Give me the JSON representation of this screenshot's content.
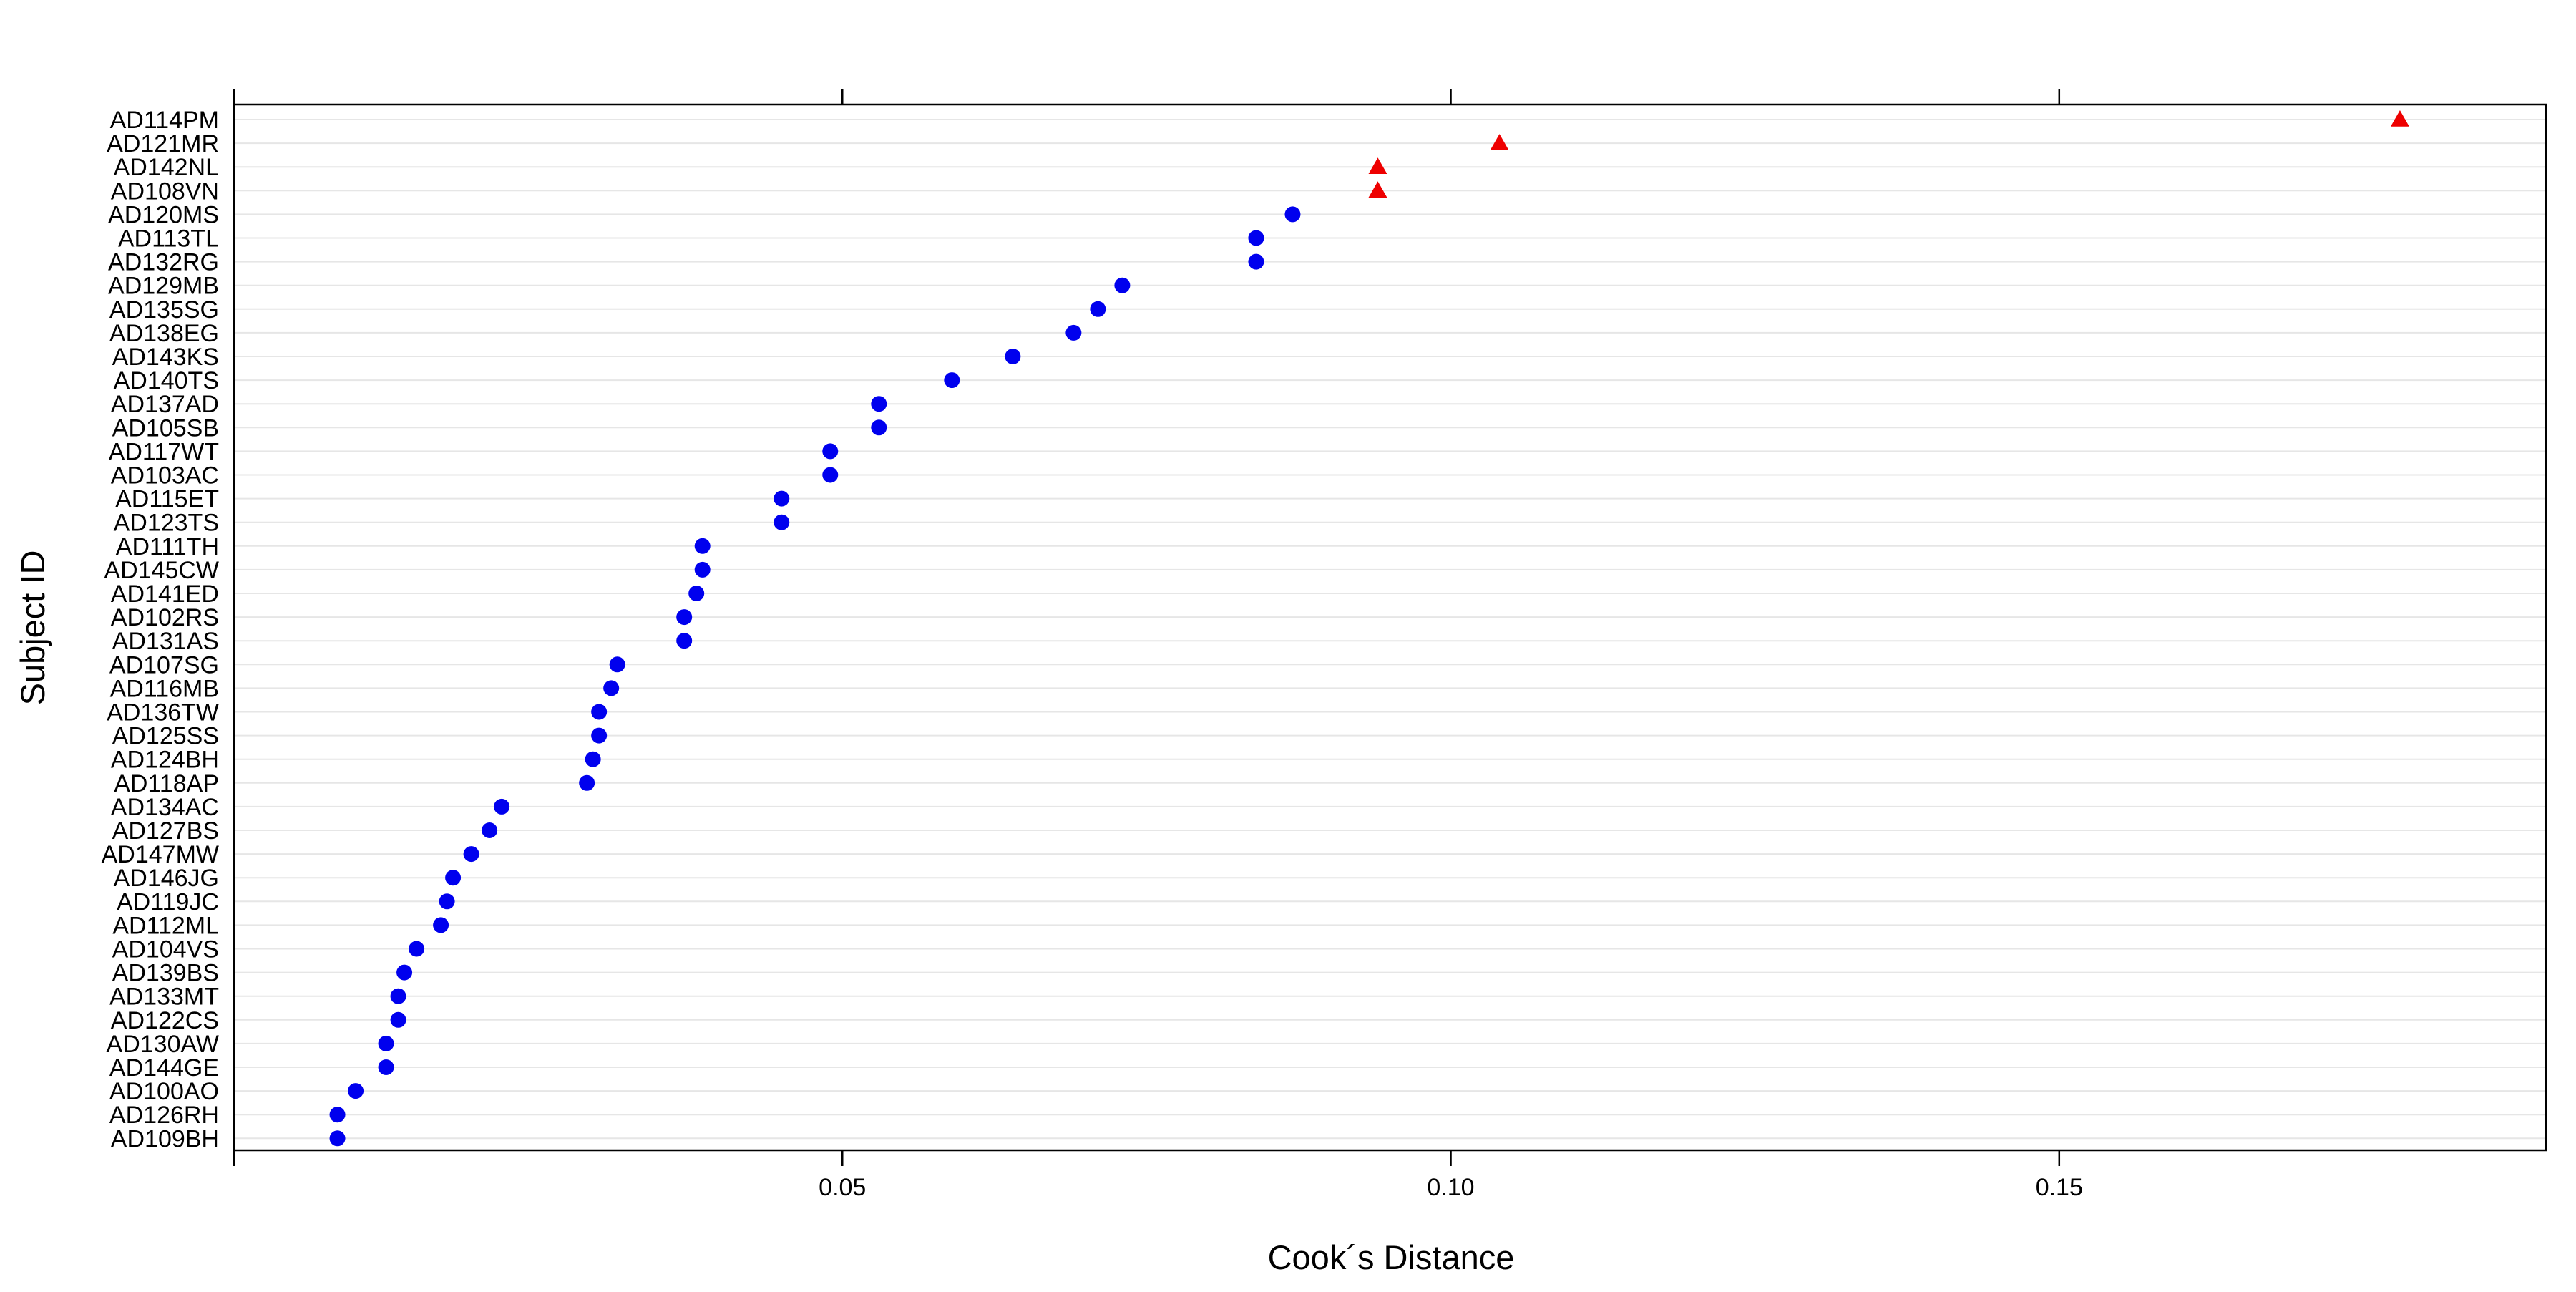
{
  "chart_data": {
    "type": "scatter",
    "title": "",
    "xlabel": "Cook´s Distance",
    "ylabel": "Subject ID",
    "xlim": [
      0.0,
      0.19
    ],
    "x_ticks": [
      0.05,
      0.1,
      0.15
    ],
    "x_tick_labels": [
      "0.05",
      "0.10",
      "0.15"
    ],
    "grid": "horizontal",
    "colors": {
      "normal": "#0000ee",
      "outlier": "#ee0000",
      "grid": "#e6e6e6",
      "axis": "#000000"
    },
    "marker_shapes": {
      "normal": "circle",
      "outlier": "triangle"
    },
    "points": [
      {
        "id": "AD114PM",
        "x": 0.178,
        "outlier": true
      },
      {
        "id": "AD121MR",
        "x": 0.104,
        "outlier": true
      },
      {
        "id": "AD142NL",
        "x": 0.094,
        "outlier": true
      },
      {
        "id": "AD108VN",
        "x": 0.094,
        "outlier": true
      },
      {
        "id": "AD120MS",
        "x": 0.087,
        "outlier": false
      },
      {
        "id": "AD113TL",
        "x": 0.084,
        "outlier": false
      },
      {
        "id": "AD132RG",
        "x": 0.084,
        "outlier": false
      },
      {
        "id": "AD129MB",
        "x": 0.073,
        "outlier": false
      },
      {
        "id": "AD135SG",
        "x": 0.071,
        "outlier": false
      },
      {
        "id": "AD138EG",
        "x": 0.069,
        "outlier": false
      },
      {
        "id": "AD143KS",
        "x": 0.064,
        "outlier": false
      },
      {
        "id": "AD140TS",
        "x": 0.059,
        "outlier": false
      },
      {
        "id": "AD137AD",
        "x": 0.053,
        "outlier": false
      },
      {
        "id": "AD105SB",
        "x": 0.053,
        "outlier": false
      },
      {
        "id": "AD117WT",
        "x": 0.049,
        "outlier": false
      },
      {
        "id": "AD103AC",
        "x": 0.049,
        "outlier": false
      },
      {
        "id": "AD115ET",
        "x": 0.045,
        "outlier": false
      },
      {
        "id": "AD123TS",
        "x": 0.045,
        "outlier": false
      },
      {
        "id": "AD111TH",
        "x": 0.0385,
        "outlier": false
      },
      {
        "id": "AD145CW",
        "x": 0.0385,
        "outlier": false
      },
      {
        "id": "AD141ED",
        "x": 0.038,
        "outlier": false
      },
      {
        "id": "AD102RS",
        "x": 0.037,
        "outlier": false
      },
      {
        "id": "AD131AS",
        "x": 0.037,
        "outlier": false
      },
      {
        "id": "AD107SG",
        "x": 0.0315,
        "outlier": false
      },
      {
        "id": "AD116MB",
        "x": 0.031,
        "outlier": false
      },
      {
        "id": "AD136TW",
        "x": 0.03,
        "outlier": false
      },
      {
        "id": "AD125SS",
        "x": 0.03,
        "outlier": false
      },
      {
        "id": "AD124BH",
        "x": 0.0295,
        "outlier": false
      },
      {
        "id": "AD118AP",
        "x": 0.029,
        "outlier": false
      },
      {
        "id": "AD134AC",
        "x": 0.022,
        "outlier": false
      },
      {
        "id": "AD127BS",
        "x": 0.021,
        "outlier": false
      },
      {
        "id": "AD147MW",
        "x": 0.0195,
        "outlier": false
      },
      {
        "id": "AD146JG",
        "x": 0.018,
        "outlier": false
      },
      {
        "id": "AD119JC",
        "x": 0.0175,
        "outlier": false
      },
      {
        "id": "AD112ML",
        "x": 0.017,
        "outlier": false
      },
      {
        "id": "AD104VS",
        "x": 0.015,
        "outlier": false
      },
      {
        "id": "AD139BS",
        "x": 0.014,
        "outlier": false
      },
      {
        "id": "AD133MT",
        "x": 0.0135,
        "outlier": false
      },
      {
        "id": "AD122CS",
        "x": 0.0135,
        "outlier": false
      },
      {
        "id": "AD130AW",
        "x": 0.0125,
        "outlier": false
      },
      {
        "id": "AD144GE",
        "x": 0.0125,
        "outlier": false
      },
      {
        "id": "AD100AO",
        "x": 0.01,
        "outlier": false
      },
      {
        "id": "AD126RH",
        "x": 0.0085,
        "outlier": false
      },
      {
        "id": "AD109BH",
        "x": 0.0085,
        "outlier": false
      }
    ]
  }
}
